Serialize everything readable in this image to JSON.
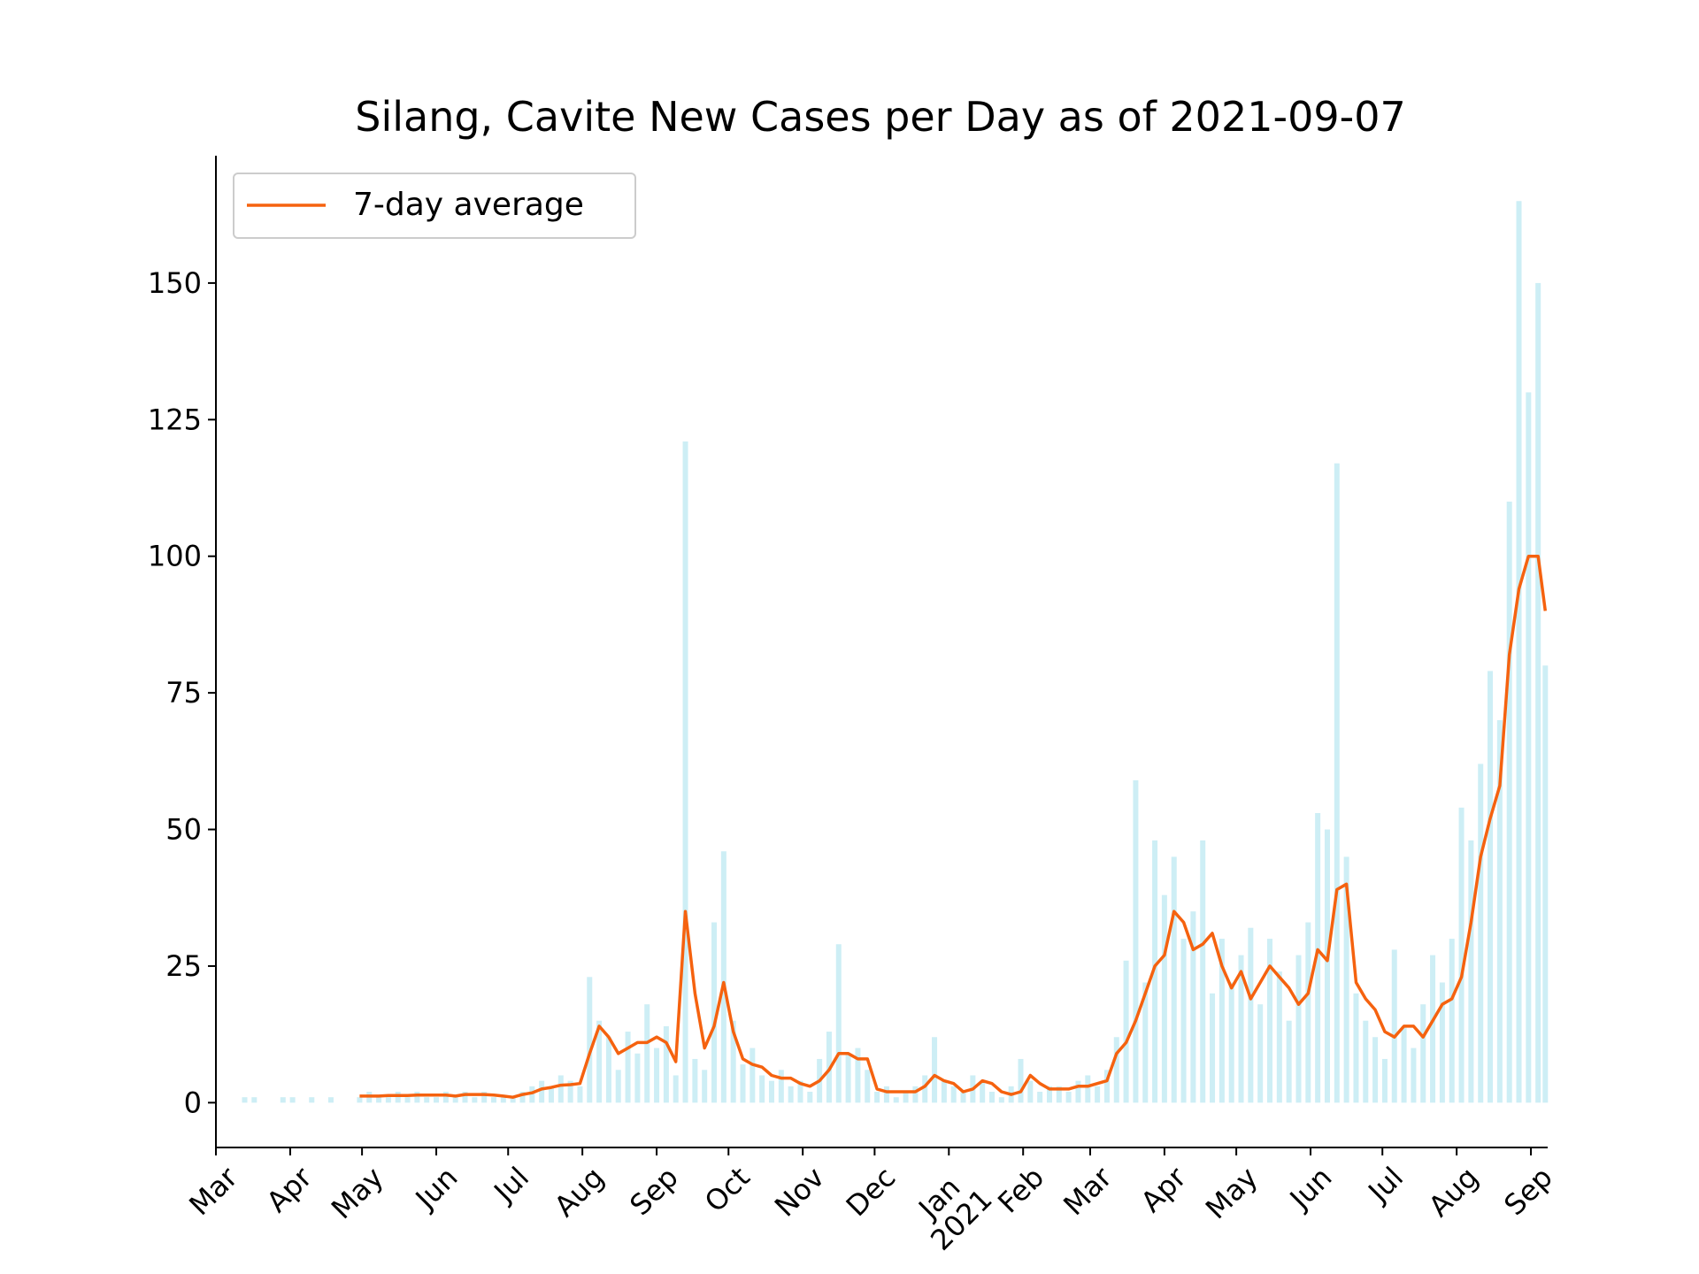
{
  "chart_data": {
    "type": "bar",
    "title": "Silang, Cavite New Cases per Day as of 2021-09-07",
    "x": [
      0,
      4,
      8,
      12,
      16,
      20,
      24,
      28,
      32,
      36,
      40,
      44,
      48,
      52,
      56,
      60,
      64,
      68,
      72,
      76,
      80,
      84,
      88,
      92,
      96,
      100,
      104,
      108,
      112,
      116,
      120,
      124,
      128,
      132,
      136,
      140,
      144,
      148,
      152,
      156,
      160,
      164,
      168,
      172,
      176,
      180,
      184,
      188,
      192,
      196,
      200,
      204,
      208,
      212,
      216,
      220,
      224,
      228,
      232,
      236,
      240,
      244,
      248,
      252,
      256,
      260,
      264,
      268,
      272,
      276,
      280,
      284,
      288,
      292,
      296,
      300,
      304,
      308,
      312,
      316,
      320,
      324,
      328,
      332,
      336,
      340,
      344,
      348,
      352,
      356,
      360,
      364,
      368,
      372,
      376,
      380,
      384,
      388,
      392,
      396,
      400,
      404,
      408,
      412,
      416,
      420,
      424,
      428,
      432,
      436,
      440,
      444,
      448,
      452,
      456,
      460,
      464,
      468,
      472,
      476,
      480,
      484,
      488,
      492,
      496,
      500,
      504,
      508,
      512,
      516,
      520,
      524,
      528,
      532,
      536,
      540,
      544,
      548,
      552,
      555
    ],
    "values": [
      0,
      0,
      0,
      1,
      1,
      0,
      0,
      1,
      1,
      0,
      1,
      0,
      1,
      0,
      0,
      1,
      2,
      1,
      1,
      2,
      1,
      2,
      1,
      1,
      2,
      1,
      2,
      1,
      2,
      1,
      1,
      1,
      2,
      3,
      4,
      3,
      5,
      4,
      3,
      23,
      15,
      12,
      6,
      13,
      9,
      18,
      10,
      14,
      5,
      121,
      8,
      6,
      33,
      46,
      15,
      7,
      10,
      5,
      4,
      6,
      3,
      4,
      2,
      8,
      13,
      29,
      9,
      10,
      6,
      2,
      3,
      1,
      2,
      3,
      5,
      12,
      4,
      3,
      2,
      5,
      4,
      2,
      1,
      3,
      8,
      4,
      2,
      3,
      3,
      2,
      4,
      5,
      3,
      6,
      12,
      26,
      59,
      22,
      48,
      38,
      45,
      30,
      35,
      48,
      20,
      30,
      22,
      27,
      32,
      18,
      30,
      24,
      15,
      27,
      33,
      53,
      50,
      117,
      45,
      20,
      15,
      12,
      8,
      28,
      14,
      10,
      18,
      27,
      22,
      30,
      54,
      48,
      62,
      79,
      70,
      110,
      165,
      130,
      150,
      80
    ],
    "color": "#cdeef5",
    "series": [
      {
        "name": "7-day average",
        "color": "#f5620f",
        "values": [
          null,
          null,
          null,
          null,
          null,
          null,
          null,
          null,
          null,
          null,
          null,
          null,
          null,
          null,
          null,
          1.2,
          1.2,
          1.2,
          1.3,
          1.3,
          1.3,
          1.4,
          1.4,
          1.4,
          1.4,
          1.2,
          1.5,
          1.5,
          1.5,
          1.4,
          1.2,
          1.0,
          1.5,
          1.8,
          2.5,
          2.8,
          3.2,
          3.3,
          3.5,
          9,
          14,
          12,
          9,
          10,
          11,
          11,
          12,
          11,
          7.5,
          35,
          20,
          10,
          14,
          22,
          13,
          8,
          7,
          6.5,
          5,
          4.5,
          4.5,
          3.5,
          3,
          4,
          6,
          9,
          9,
          8,
          8,
          2.5,
          2,
          2,
          2,
          2,
          3,
          5,
          4,
          3.5,
          2,
          2.5,
          4,
          3.5,
          2,
          1.5,
          2,
          5,
          3.5,
          2.5,
          2.5,
          2.5,
          3,
          3,
          3.5,
          4,
          9,
          11,
          15,
          20,
          25,
          27,
          35,
          33,
          28,
          29,
          31,
          25,
          21,
          24,
          19,
          22,
          25,
          23,
          21,
          18,
          20,
          28,
          26,
          39,
          40,
          22,
          19,
          17,
          13,
          12,
          14,
          14,
          12,
          15,
          18,
          19,
          23,
          33,
          45,
          52,
          58,
          82,
          94,
          100,
          100,
          90
        ]
      }
    ],
    "xlim": [
      0,
      556
    ],
    "xticks": [
      {
        "value": 0,
        "label": "Mar"
      },
      {
        "value": 31,
        "label": "Apr"
      },
      {
        "value": 61,
        "label": "May"
      },
      {
        "value": 92,
        "label": "Jun"
      },
      {
        "value": 122,
        "label": "Jul"
      },
      {
        "value": 153,
        "label": "Aug"
      },
      {
        "value": 184,
        "label": "Sep"
      },
      {
        "value": 214,
        "label": "Oct"
      },
      {
        "value": 245,
        "label": "Nov"
      },
      {
        "value": 275,
        "label": "Dec"
      },
      {
        "value": 306,
        "label": "Jan\n2021"
      },
      {
        "value": 337,
        "label": "Feb"
      },
      {
        "value": 365,
        "label": "Mar"
      },
      {
        "value": 396,
        "label": "Apr"
      },
      {
        "value": 426,
        "label": "May"
      },
      {
        "value": 457,
        "label": "Jun"
      },
      {
        "value": 487,
        "label": "Jul"
      },
      {
        "value": 518,
        "label": "Aug"
      },
      {
        "value": 549,
        "label": "Sep"
      }
    ],
    "ylim": [
      -8.2,
      173.3
    ],
    "yticks": [
      0,
      25,
      50,
      75,
      100,
      125,
      150
    ],
    "grid": false,
    "legend": "upper left"
  }
}
